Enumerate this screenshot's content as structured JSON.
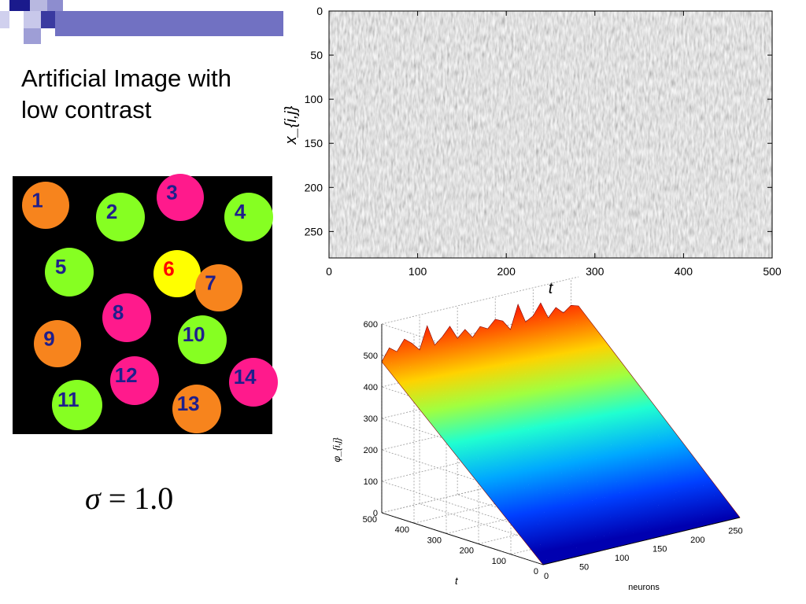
{
  "slide": {
    "title": "Artificial Image with low contrast",
    "sigma_symbol": "σ",
    "sigma_equals": " = ",
    "sigma_value": "1.0"
  },
  "image": {
    "circles": [
      {
        "label": "1",
        "fill": "#f7841d",
        "text": "#1f1f8c"
      },
      {
        "label": "2",
        "fill": "#86ff22",
        "text": "#1f1f8c"
      },
      {
        "label": "3",
        "fill": "#ff1a8c",
        "text": "#1f1f8c"
      },
      {
        "label": "4",
        "fill": "#86ff22",
        "text": "#1f1f8c"
      },
      {
        "label": "5",
        "fill": "#86ff22",
        "text": "#1f1f8c"
      },
      {
        "label": "6",
        "fill": "#ffff00",
        "text": "#ff0000"
      },
      {
        "label": "7",
        "fill": "#f7841d",
        "text": "#1f1f8c"
      },
      {
        "label": "8",
        "fill": "#ff1a8c",
        "text": "#1f1f8c"
      },
      {
        "label": "9",
        "fill": "#f7841d",
        "text": "#1f1f8c"
      },
      {
        "label": "10",
        "fill": "#86ff22",
        "text": "#1f1f8c"
      },
      {
        "label": "11",
        "fill": "#86ff22",
        "text": "#1f1f8c"
      },
      {
        "label": "12",
        "fill": "#ff1a8c",
        "text": "#1f1f8c"
      },
      {
        "label": "13",
        "fill": "#f7841d",
        "text": "#1f1f8c"
      },
      {
        "label": "14",
        "fill": "#ff1a8c",
        "text": "#1f1f8c"
      }
    ]
  },
  "chart_data": [
    {
      "type": "heatmap",
      "title": "",
      "xlabel": "t",
      "ylabel": "x_{i,j}",
      "xlim": [
        0,
        500
      ],
      "ylim": [
        0,
        280
      ],
      "y_inverted": true,
      "xticks": [
        "0",
        "100",
        "200",
        "300",
        "400",
        "500"
      ],
      "yticks": [
        "0",
        "50",
        "100",
        "150",
        "200",
        "250"
      ],
      "colormap": "grayscale",
      "grid": false
    },
    {
      "type": "surface",
      "title": "",
      "xlabel": "neurons",
      "ylabel": "t",
      "zlabel": "φ_{i,j}",
      "xlim": [
        0,
        260
      ],
      "ylim": [
        0,
        500
      ],
      "zlim": [
        0,
        600
      ],
      "xticks": [
        "0",
        "50",
        "100",
        "150",
        "200",
        "250"
      ],
      "yticks": [
        "0",
        "100",
        "200",
        "300",
        "400",
        "500"
      ],
      "zticks": [
        "0",
        "100",
        "200",
        "300",
        "400",
        "500",
        "600"
      ],
      "colormap": "jet",
      "grid": true
    }
  ]
}
